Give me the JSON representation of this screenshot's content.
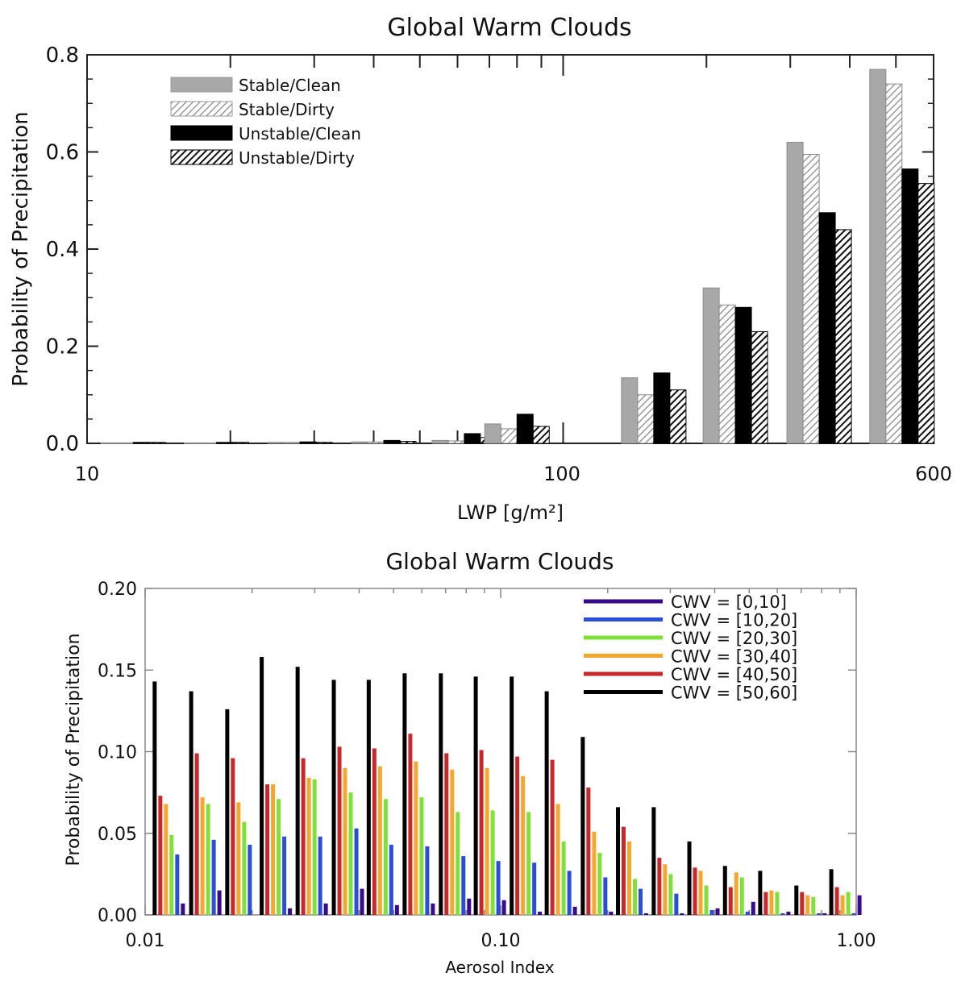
{
  "chart_data": [
    {
      "type": "bar",
      "title": "Global Warm Clouds",
      "xlabel": "LWP [g/m²]",
      "ylabel": "Probability of Precipitation",
      "xscale": "log",
      "xlim": [
        10,
        600
      ],
      "ylim": [
        0,
        0.8
      ],
      "x_tick_labels": [
        "10",
        "100",
        "600"
      ],
      "y_tick_labels": [
        "0.0",
        "0.2",
        "0.4",
        "0.6",
        "0.8"
      ],
      "legend_position": "top-left",
      "x": [
        12.5,
        18.7,
        28,
        42,
        62,
        80,
        108,
        155,
        230,
        345,
        515
      ],
      "series": [
        {
          "name": "Stable/Clean",
          "color": "#a8a8a8",
          "pattern": "solid",
          "values": [
            0.001,
            0.001,
            0.002,
            0.003,
            0.006,
            0.04,
            0.0,
            0.135,
            0.32,
            0.62,
            0.77
          ]
        },
        {
          "name": "Stable/Dirty",
          "color": "#bbbbbb",
          "pattern": "hatched",
          "values": [
            0.001,
            0.001,
            0.002,
            0.003,
            0.005,
            0.03,
            0.0,
            0.1,
            0.285,
            0.595,
            0.74
          ]
        },
        {
          "name": "Unstable/Clean",
          "color": "#000000",
          "pattern": "solid",
          "values": [
            0.002,
            0.002,
            0.003,
            0.006,
            0.02,
            0.06,
            0.0,
            0.145,
            0.28,
            0.475,
            0.565
          ]
        },
        {
          "name": "Unstable/Dirty",
          "color": "#1a1a1a",
          "pattern": "hatched",
          "values": [
            0.002,
            0.002,
            0.002,
            0.004,
            0.012,
            0.035,
            0.0,
            0.11,
            0.23,
            0.44,
            0.535
          ]
        }
      ]
    },
    {
      "type": "bar",
      "title": "Global Warm Clouds",
      "xlabel": "Aerosol Index",
      "ylabel": "Probability of Precipitation",
      "xscale": "log",
      "xlim": [
        0.01,
        1.0
      ],
      "ylim": [
        0,
        0.2
      ],
      "x_tick_labels": [
        "0.01",
        "0.10",
        "1.00"
      ],
      "y_tick_labels": [
        "0.00",
        "0.05",
        "0.10",
        "0.15",
        "0.20"
      ],
      "legend_position": "top-right",
      "x": [
        0.0105,
        0.0133,
        0.0168,
        0.021,
        0.0265,
        0.0335,
        0.042,
        0.053,
        0.067,
        0.084,
        0.106,
        0.133,
        0.168,
        0.211,
        0.266,
        0.335,
        0.422,
        0.53,
        0.67,
        0.84
      ],
      "series": [
        {
          "name": "CWV = [0,10]",
          "color": "#3a0a8c",
          "values": [
            0.007,
            0.015,
            0.0,
            0.004,
            0.007,
            0.016,
            0.006,
            0.007,
            0.01,
            0.009,
            0.002,
            0.005,
            0.002,
            0.001,
            0.001,
            0.004,
            0.008,
            0.002,
            0.001,
            0.012
          ]
        },
        {
          "name": "CWV = [10,20]",
          "color": "#2a4fd6",
          "values": [
            0.037,
            0.046,
            0.043,
            0.048,
            0.048,
            0.053,
            0.043,
            0.042,
            0.036,
            0.033,
            0.032,
            0.027,
            0.023,
            0.016,
            0.013,
            0.003,
            0.002,
            0.001,
            0.001,
            0.001
          ]
        },
        {
          "name": "CWV = [20,30]",
          "color": "#7fe03a",
          "values": [
            0.049,
            0.068,
            0.057,
            0.071,
            0.083,
            0.075,
            0.071,
            0.072,
            0.063,
            0.064,
            0.063,
            0.045,
            0.038,
            0.022,
            0.025,
            0.018,
            0.023,
            0.014,
            0.011,
            0.014
          ]
        },
        {
          "name": "CWV = [30,40]",
          "color": "#f5a830",
          "values": [
            0.068,
            0.072,
            0.069,
            0.08,
            0.084,
            0.09,
            0.091,
            0.094,
            0.089,
            0.09,
            0.085,
            0.068,
            0.051,
            0.045,
            0.031,
            0.027,
            0.026,
            0.015,
            0.012,
            0.012
          ]
        },
        {
          "name": "CWV = [40,50]",
          "color": "#c8282a",
          "values": [
            0.073,
            0.099,
            0.096,
            0.08,
            0.096,
            0.103,
            0.102,
            0.111,
            0.099,
            0.101,
            0.097,
            0.095,
            0.078,
            0.054,
            0.035,
            0.029,
            0.017,
            0.014,
            0.014,
            0.017
          ]
        },
        {
          "name": "CWV = [50,60]",
          "color": "#000000",
          "values": [
            0.143,
            0.137,
            0.126,
            0.158,
            0.152,
            0.144,
            0.144,
            0.148,
            0.148,
            0.146,
            0.146,
            0.137,
            0.109,
            0.066,
            0.066,
            0.045,
            0.03,
            0.027,
            0.018,
            0.028
          ]
        }
      ]
    }
  ]
}
